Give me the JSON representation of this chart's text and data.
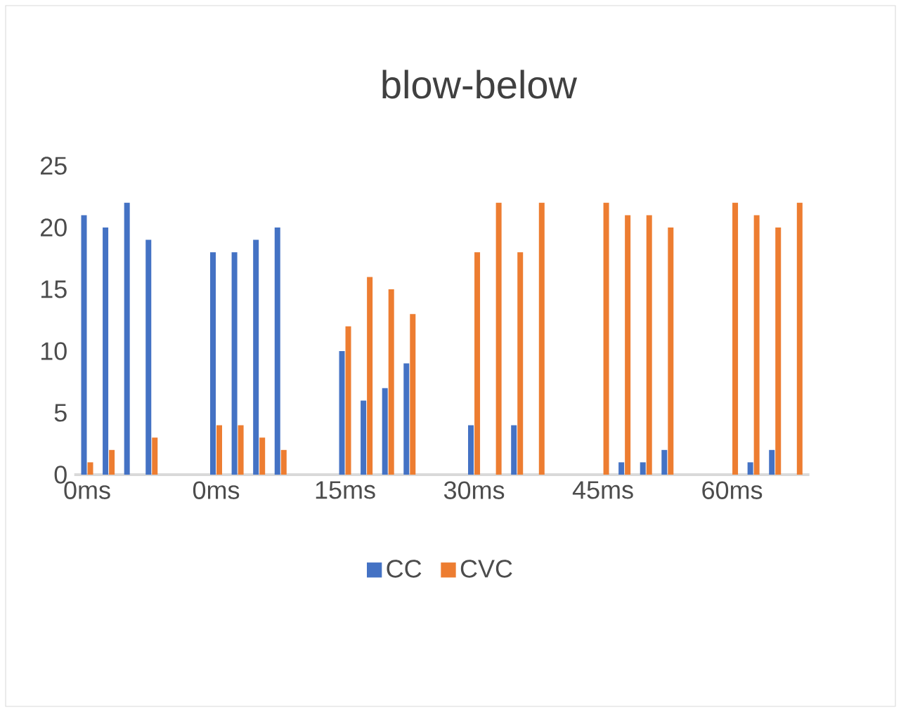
{
  "chart_data": {
    "type": "bar",
    "title": "blow-below",
    "categories": [
      "0ms",
      null,
      null,
      null,
      null,
      null,
      "0ms",
      null,
      null,
      null,
      null,
      null,
      "15ms",
      null,
      null,
      null,
      null,
      null,
      "30ms",
      null,
      null,
      null,
      null,
      null,
      "45ms",
      null,
      null,
      null,
      null,
      null,
      "60ms",
      null,
      null,
      null
    ],
    "series": [
      {
        "name": "CC",
        "color": "#4472c4",
        "values": [
          21,
          20,
          22,
          19,
          null,
          null,
          18,
          18,
          19,
          20,
          null,
          null,
          10,
          6,
          7,
          9,
          null,
          null,
          4,
          0,
          4,
          0,
          null,
          null,
          0,
          1,
          1,
          2,
          null,
          null,
          0,
          1,
          2,
          0
        ]
      },
      {
        "name": "CVC",
        "color": "#ed7d31",
        "values": [
          1,
          2,
          0,
          3,
          null,
          null,
          4,
          4,
          3,
          2,
          null,
          null,
          12,
          16,
          15,
          13,
          null,
          null,
          18,
          22,
          18,
          22,
          null,
          null,
          22,
          21,
          21,
          20,
          null,
          null,
          22,
          21,
          20,
          22
        ]
      }
    ],
    "ylim": [
      0,
      25
    ],
    "yticks": [
      0,
      5,
      10,
      15,
      20,
      25
    ],
    "legend": "bottom"
  }
}
